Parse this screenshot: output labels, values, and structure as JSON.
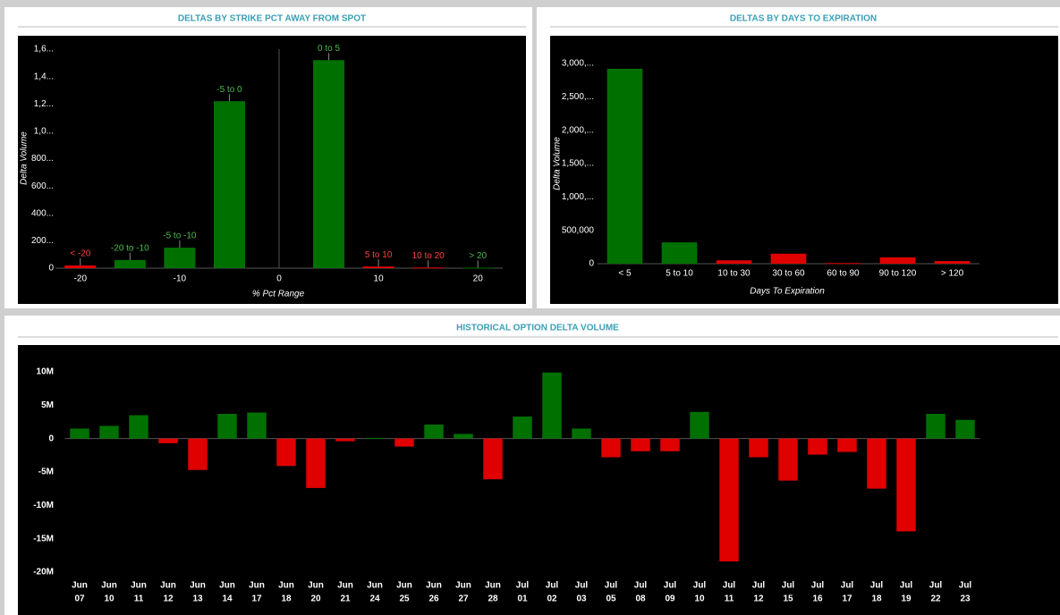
{
  "chart_data": [
    {
      "type": "bar",
      "title": "DELTAS BY STRIKE PCT AWAY FROM SPOT",
      "x_label": "% Pct Range",
      "y_label": "Delta Volume",
      "categories": [
        "< -20",
        "-20 to -10",
        "-5 to -10",
        "-5 to 0",
        "0 to 5",
        "5 to 10",
        "10 to 20",
        "> 20"
      ],
      "x": [
        -20,
        -15,
        -10,
        -5,
        5,
        10,
        15,
        20
      ],
      "values": [
        20000,
        60000,
        150000,
        1220000,
        1520000,
        12000,
        5000,
        3000
      ],
      "colors": [
        "#e00000",
        "#007000",
        "#007000",
        "#007000",
        "#007000",
        "#e00000",
        "#e00000",
        "#007000"
      ],
      "xlim": [
        -22.5,
        22.5
      ],
      "xticks": [
        -20,
        -10,
        0,
        10,
        20
      ],
      "ylim": [
        0,
        1600000
      ],
      "yticks": [
        0,
        {
          "value": 200000,
          "label": "200..."
        },
        {
          "value": 400000,
          "label": "400..."
        },
        {
          "value": 600000,
          "label": "600..."
        },
        {
          "value": 800000,
          "label": "800..."
        },
        {
          "value": 1000000,
          "label": "1,0..."
        },
        {
          "value": 1200000,
          "label": "1,2..."
        },
        {
          "value": 1400000,
          "label": "1,4..."
        },
        {
          "value": 1600000,
          "label": "1,6..."
        }
      ]
    },
    {
      "type": "bar",
      "title": "DELTAS BY DAYS TO EXPIRATION",
      "x_label": "Days To Expiration",
      "y_label": "Delta Volume",
      "categories": [
        "< 5",
        "5 to 10",
        "10 to 30",
        "30 to 60",
        "60 to 90",
        "90 to 120",
        "> 120"
      ],
      "values": [
        2920000,
        320000,
        50000,
        150000,
        10000,
        95000,
        40000
      ],
      "colors": [
        "#007000",
        "#007000",
        "#e00000",
        "#e00000",
        "#e00000",
        "#e00000",
        "#e00000"
      ],
      "ylim": [
        0,
        3000000
      ],
      "yticks": [
        0,
        {
          "value": 500000,
          "label": "500,000"
        },
        {
          "value": 1000000,
          "label": "1,000,..."
        },
        {
          "value": 1500000,
          "label": "1,500,..."
        },
        {
          "value": 2000000,
          "label": "2,000,..."
        },
        {
          "value": 2500000,
          "label": "2,500,..."
        },
        {
          "value": 3000000,
          "label": "3,000,..."
        }
      ]
    },
    {
      "type": "bar",
      "title": "HISTORICAL OPTION DELTA VOLUME",
      "categories": [
        [
          "Jun",
          "07"
        ],
        [
          "Jun",
          "10"
        ],
        [
          "Jun",
          "11"
        ],
        [
          "Jun",
          "12"
        ],
        [
          "Jun",
          "13"
        ],
        [
          "Jun",
          "14"
        ],
        [
          "Jun",
          "17"
        ],
        [
          "Jun",
          "18"
        ],
        [
          "Jun",
          "20"
        ],
        [
          "Jun",
          "21"
        ],
        [
          "Jun",
          "24"
        ],
        [
          "Jun",
          "25"
        ],
        [
          "Jun",
          "26"
        ],
        [
          "Jun",
          "27"
        ],
        [
          "Jun",
          "28"
        ],
        [
          "Jul",
          "01"
        ],
        [
          "Jul",
          "02"
        ],
        [
          "Jul",
          "03"
        ],
        [
          "Jul",
          "05"
        ],
        [
          "Jul",
          "08"
        ],
        [
          "Jul",
          "09"
        ],
        [
          "Jul",
          "10"
        ],
        [
          "Jul",
          "11"
        ],
        [
          "Jul",
          "12"
        ],
        [
          "Jul",
          "15"
        ],
        [
          "Jul",
          "16"
        ],
        [
          "Jul",
          "17"
        ],
        [
          "Jul",
          "18"
        ],
        [
          "Jul",
          "19"
        ],
        [
          "Jul",
          "22"
        ],
        [
          "Jul",
          "23"
        ]
      ],
      "values": [
        1500000,
        1900000,
        3500000,
        -700000,
        -4700000,
        3700000,
        3900000,
        -4100000,
        -7400000,
        -400000,
        100000,
        -1200000,
        2100000,
        700000,
        -6100000,
        3300000,
        9900000,
        1500000,
        -2800000,
        -1900000,
        -1900000,
        4000000,
        -18400000,
        -2800000,
        -6300000,
        -2400000,
        -2000000,
        -7500000,
        -13900000,
        3700000,
        2800000
      ],
      "positive_color": "#007000",
      "negative_color": "#e00000",
      "ylim": [
        -20000000,
        12000000
      ],
      "yticks": [
        {
          "value": -20000000,
          "label": "-20M"
        },
        {
          "value": -15000000,
          "label": "-15M"
        },
        {
          "value": -10000000,
          "label": "-10M"
        },
        {
          "value": -5000000,
          "label": "-5M"
        },
        0,
        {
          "value": 5000000,
          "label": "5M"
        },
        {
          "value": 10000000,
          "label": "10M"
        }
      ]
    }
  ]
}
